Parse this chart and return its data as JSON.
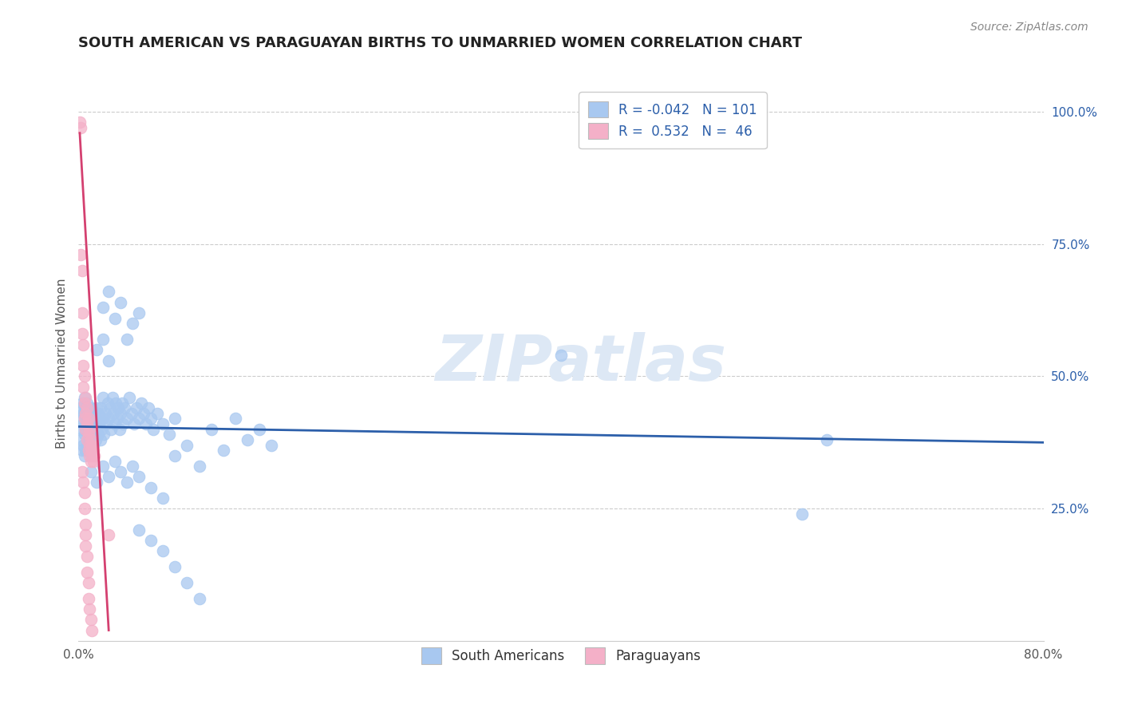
{
  "title": "SOUTH AMERICAN VS PARAGUAYAN BIRTHS TO UNMARRIED WOMEN CORRELATION CHART",
  "source": "Source: ZipAtlas.com",
  "ylabel": "Births to Unmarried Women",
  "right_yticks": [
    "100.0%",
    "75.0%",
    "50.0%",
    "25.0%"
  ],
  "right_ytick_vals": [
    1.0,
    0.75,
    0.5,
    0.25
  ],
  "legend_label_south": "South Americans",
  "legend_label_para": "Paraguayans",
  "watermark": "ZIPatlas",
  "blue_scatter": [
    [
      0.001,
      0.42
    ],
    [
      0.002,
      0.38
    ],
    [
      0.002,
      0.44
    ],
    [
      0.003,
      0.36
    ],
    [
      0.003,
      0.4
    ],
    [
      0.003,
      0.45
    ],
    [
      0.004,
      0.37
    ],
    [
      0.004,
      0.41
    ],
    [
      0.004,
      0.43
    ],
    [
      0.005,
      0.35
    ],
    [
      0.005,
      0.39
    ],
    [
      0.005,
      0.43
    ],
    [
      0.005,
      0.46
    ],
    [
      0.006,
      0.36
    ],
    [
      0.006,
      0.4
    ],
    [
      0.006,
      0.44
    ],
    [
      0.007,
      0.37
    ],
    [
      0.007,
      0.41
    ],
    [
      0.007,
      0.45
    ],
    [
      0.008,
      0.36
    ],
    [
      0.008,
      0.39
    ],
    [
      0.008,
      0.43
    ],
    [
      0.009,
      0.38
    ],
    [
      0.009,
      0.42
    ],
    [
      0.01,
      0.36
    ],
    [
      0.01,
      0.4
    ],
    [
      0.01,
      0.44
    ],
    [
      0.011,
      0.38
    ],
    [
      0.011,
      0.42
    ],
    [
      0.012,
      0.37
    ],
    [
      0.012,
      0.41
    ],
    [
      0.013,
      0.39
    ],
    [
      0.013,
      0.43
    ],
    [
      0.014,
      0.38
    ],
    [
      0.014,
      0.42
    ],
    [
      0.015,
      0.4
    ],
    [
      0.015,
      0.44
    ],
    [
      0.016,
      0.39
    ],
    [
      0.016,
      0.43
    ],
    [
      0.017,
      0.41
    ],
    [
      0.018,
      0.38
    ],
    [
      0.018,
      0.44
    ],
    [
      0.019,
      0.4
    ],
    [
      0.02,
      0.42
    ],
    [
      0.02,
      0.46
    ],
    [
      0.021,
      0.39
    ],
    [
      0.022,
      0.43
    ],
    [
      0.023,
      0.41
    ],
    [
      0.024,
      0.45
    ],
    [
      0.025,
      0.42
    ],
    [
      0.026,
      0.44
    ],
    [
      0.027,
      0.4
    ],
    [
      0.028,
      0.46
    ],
    [
      0.029,
      0.43
    ],
    [
      0.03,
      0.41
    ],
    [
      0.031,
      0.45
    ],
    [
      0.032,
      0.42
    ],
    [
      0.033,
      0.44
    ],
    [
      0.034,
      0.4
    ],
    [
      0.035,
      0.43
    ],
    [
      0.036,
      0.45
    ],
    [
      0.037,
      0.41
    ],
    [
      0.038,
      0.44
    ],
    [
      0.04,
      0.42
    ],
    [
      0.042,
      0.46
    ],
    [
      0.044,
      0.43
    ],
    [
      0.046,
      0.41
    ],
    [
      0.048,
      0.44
    ],
    [
      0.05,
      0.42
    ],
    [
      0.052,
      0.45
    ],
    [
      0.054,
      0.43
    ],
    [
      0.056,
      0.41
    ],
    [
      0.058,
      0.44
    ],
    [
      0.06,
      0.42
    ],
    [
      0.062,
      0.4
    ],
    [
      0.065,
      0.43
    ],
    [
      0.07,
      0.41
    ],
    [
      0.075,
      0.39
    ],
    [
      0.08,
      0.42
    ],
    [
      0.02,
      0.63
    ],
    [
      0.025,
      0.66
    ],
    [
      0.03,
      0.61
    ],
    [
      0.035,
      0.64
    ],
    [
      0.04,
      0.57
    ],
    [
      0.045,
      0.6
    ],
    [
      0.05,
      0.62
    ],
    [
      0.015,
      0.55
    ],
    [
      0.02,
      0.57
    ],
    [
      0.025,
      0.53
    ],
    [
      0.01,
      0.32
    ],
    [
      0.015,
      0.3
    ],
    [
      0.02,
      0.33
    ],
    [
      0.025,
      0.31
    ],
    [
      0.03,
      0.34
    ],
    [
      0.035,
      0.32
    ],
    [
      0.04,
      0.3
    ],
    [
      0.045,
      0.33
    ],
    [
      0.05,
      0.31
    ],
    [
      0.06,
      0.29
    ],
    [
      0.07,
      0.27
    ],
    [
      0.05,
      0.21
    ],
    [
      0.06,
      0.19
    ],
    [
      0.07,
      0.17
    ],
    [
      0.08,
      0.14
    ],
    [
      0.09,
      0.11
    ],
    [
      0.1,
      0.08
    ],
    [
      0.4,
      0.54
    ],
    [
      0.6,
      0.24
    ],
    [
      0.62,
      0.38
    ],
    [
      0.08,
      0.35
    ],
    [
      0.09,
      0.37
    ],
    [
      0.1,
      0.33
    ],
    [
      0.11,
      0.4
    ],
    [
      0.12,
      0.36
    ],
    [
      0.13,
      0.42
    ],
    [
      0.14,
      0.38
    ],
    [
      0.15,
      0.4
    ],
    [
      0.16,
      0.37
    ]
  ],
  "pink_scatter": [
    [
      0.001,
      0.98
    ],
    [
      0.002,
      0.97
    ],
    [
      0.002,
      0.73
    ],
    [
      0.003,
      0.7
    ],
    [
      0.003,
      0.62
    ],
    [
      0.003,
      0.58
    ],
    [
      0.004,
      0.56
    ],
    [
      0.004,
      0.52
    ],
    [
      0.004,
      0.48
    ],
    [
      0.005,
      0.5
    ],
    [
      0.005,
      0.45
    ],
    [
      0.005,
      0.42
    ],
    [
      0.006,
      0.46
    ],
    [
      0.006,
      0.43
    ],
    [
      0.006,
      0.4
    ],
    [
      0.007,
      0.44
    ],
    [
      0.007,
      0.41
    ],
    [
      0.007,
      0.38
    ],
    [
      0.008,
      0.42
    ],
    [
      0.008,
      0.39
    ],
    [
      0.008,
      0.36
    ],
    [
      0.009,
      0.4
    ],
    [
      0.009,
      0.37
    ],
    [
      0.009,
      0.35
    ],
    [
      0.01,
      0.38
    ],
    [
      0.01,
      0.36
    ],
    [
      0.01,
      0.34
    ],
    [
      0.011,
      0.37
    ],
    [
      0.011,
      0.35
    ],
    [
      0.012,
      0.36
    ],
    [
      0.012,
      0.34
    ],
    [
      0.013,
      0.35
    ],
    [
      0.003,
      0.32
    ],
    [
      0.004,
      0.3
    ],
    [
      0.005,
      0.28
    ],
    [
      0.005,
      0.25
    ],
    [
      0.006,
      0.22
    ],
    [
      0.006,
      0.2
    ],
    [
      0.006,
      0.18
    ],
    [
      0.007,
      0.16
    ],
    [
      0.007,
      0.13
    ],
    [
      0.008,
      0.11
    ],
    [
      0.008,
      0.08
    ],
    [
      0.009,
      0.06
    ],
    [
      0.01,
      0.04
    ],
    [
      0.011,
      0.02
    ],
    [
      0.025,
      0.2
    ]
  ],
  "xlim": [
    0,
    0.8
  ],
  "ylim": [
    0,
    1.05
  ],
  "blue_trend_x": [
    0.0,
    0.8
  ],
  "blue_trend_y": [
    0.405,
    0.375
  ],
  "pink_trend_x": [
    0.001,
    0.025
  ],
  "pink_trend_y": [
    0.96,
    0.02
  ]
}
